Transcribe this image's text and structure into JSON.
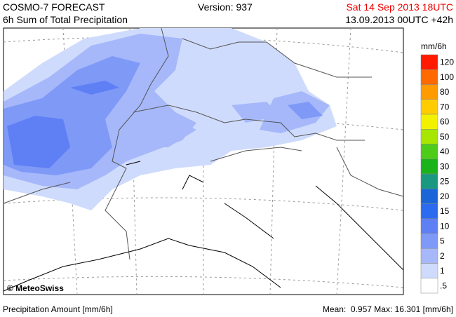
{
  "header": {
    "title": "COSMO-7 FORECAST",
    "subtitle": "6h Sum of Total Precipitation",
    "version": "Version: 937",
    "valid_time": "Sat 14 Sep 2013 18UTC",
    "run_time": "13.09.2013 00UTC +42h"
  },
  "map": {
    "credit": "© MeteoSwiss"
  },
  "legend": {
    "unit": "mm/6h",
    "levels": [
      {
        "label": "120",
        "color": "#ff1a00"
      },
      {
        "label": "100",
        "color": "#ff6a00"
      },
      {
        "label": "80",
        "color": "#ff9a00"
      },
      {
        "label": "70",
        "color": "#ffcc00"
      },
      {
        "label": "60",
        "color": "#f2f200"
      },
      {
        "label": "50",
        "color": "#a6e600"
      },
      {
        "label": "40",
        "color": "#4dcc1a"
      },
      {
        "label": "30",
        "color": "#1ab31a"
      },
      {
        "label": "25",
        "color": "#1a9980"
      },
      {
        "label": "20",
        "color": "#1a66d9"
      },
      {
        "label": "15",
        "color": "#2b6bf0"
      },
      {
        "label": "10",
        "color": "#5f7ff5"
      },
      {
        "label": "5",
        "color": "#7f99f7"
      },
      {
        "label": "2",
        "color": "#a6b8fa"
      },
      {
        "label": "1",
        "color": "#cfdbfc"
      },
      {
        "label": ".5",
        "color": "#ffffff"
      }
    ]
  },
  "footer": {
    "left": "Precipitation Amount [mm/6h]",
    "right": "Mean:  0.957 Max: 16.301 [mm/6h]"
  }
}
